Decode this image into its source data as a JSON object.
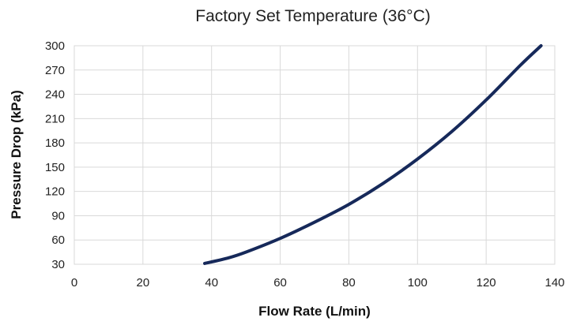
{
  "chart_data": {
    "type": "line",
    "title": "Factory Set Temperature (36°C)",
    "xlabel": "Flow Rate (L/min)",
    "ylabel": "Pressure Drop (kPa)",
    "xlim": [
      0,
      140
    ],
    "ylim": [
      30,
      300
    ],
    "xticks": [
      "0",
      "20",
      "40",
      "60",
      "80",
      "100",
      "120",
      "140"
    ],
    "yticks": [
      "30",
      "60",
      "90",
      "120",
      "150",
      "180",
      "210",
      "240",
      "270",
      "300"
    ],
    "grid": true,
    "legend": "none",
    "series": [
      {
        "color": "#16295a",
        "x": [
          38,
          45,
          50,
          60,
          70,
          80,
          90,
          100,
          110,
          120,
          130,
          136
        ],
        "y": [
          31,
          38,
          45,
          62,
          82,
          104,
          130,
          160,
          194,
          233,
          276,
          300
        ]
      }
    ]
  }
}
